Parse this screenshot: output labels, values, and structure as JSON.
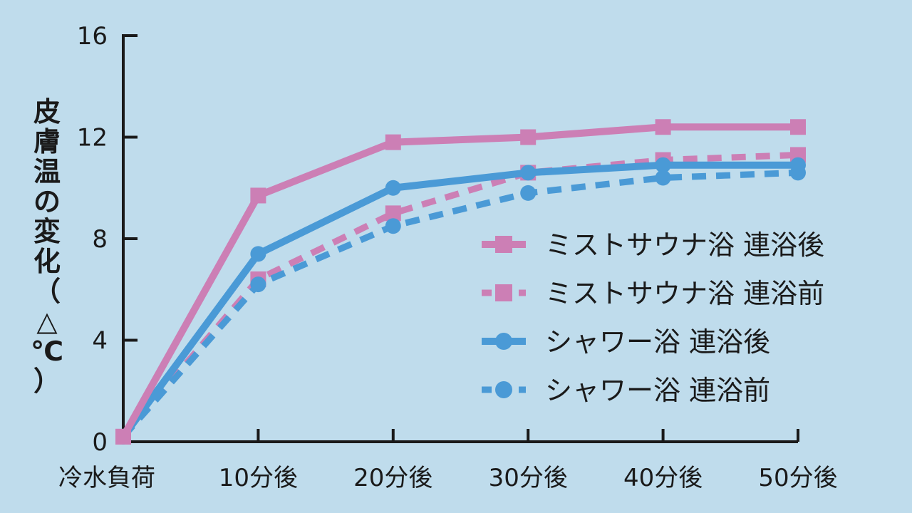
{
  "chart_data": {
    "type": "line",
    "title": "",
    "xlabel": "",
    "ylabel": "皮膚温の変化（△℃）",
    "ylabel_chars": [
      "皮",
      "膚",
      "温",
      "の",
      "変",
      "化",
      "（",
      "△",
      "℃",
      "）"
    ],
    "categories": [
      "冷水負荷",
      "10分後",
      "20分後",
      "30分後",
      "40分後",
      "50分後"
    ],
    "yticks": [
      "0",
      "4",
      "8",
      "12",
      "16"
    ],
    "ylim": [
      0,
      16
    ],
    "grid": false,
    "legend_position": "right",
    "series": [
      {
        "name": "ミストサウナ浴 連浴後",
        "values": [
          0.2,
          9.7,
          11.8,
          12.0,
          12.4,
          12.4
        ],
        "color": "#cc7fb5",
        "dash": false,
        "marker": "square"
      },
      {
        "name": "ミストサウナ浴 連浴前",
        "values": [
          0.2,
          6.4,
          9.0,
          10.6,
          11.1,
          11.3
        ],
        "color": "#cc7fb5",
        "dash": true,
        "marker": "square"
      },
      {
        "name": "シャワー浴 連浴後",
        "values": [
          0.2,
          7.4,
          10.0,
          10.6,
          10.9,
          10.9
        ],
        "color": "#4a9ad6",
        "dash": false,
        "marker": "circle"
      },
      {
        "name": "シャワー浴 連浴前",
        "values": [
          0.2,
          6.2,
          8.5,
          9.8,
          10.4,
          10.6
        ],
        "color": "#4a9ad6",
        "dash": true,
        "marker": "circle"
      }
    ]
  }
}
